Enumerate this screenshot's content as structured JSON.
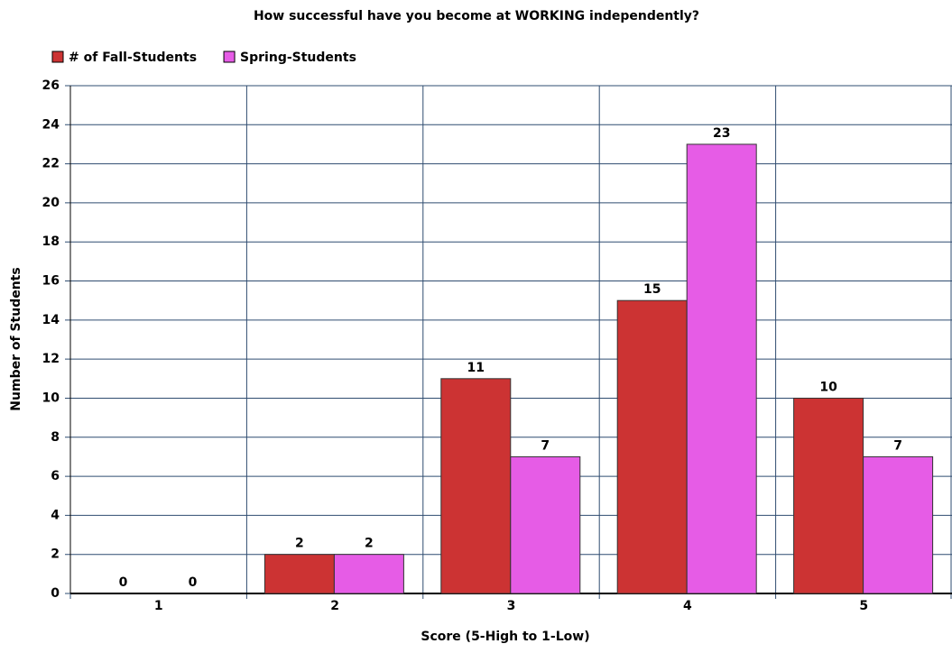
{
  "chart_data": {
    "type": "bar",
    "title": "How successful have you become at WORKING independently?",
    "x_label": "Score  (5-High to 1-Low)",
    "y_label": "Number of Students",
    "categories": [
      "1",
      "2",
      "3",
      "4",
      "5"
    ],
    "series": [
      {
        "name": "# of Fall-Students",
        "color": "#cc3333",
        "values": [
          0,
          2,
          11,
          15,
          10
        ]
      },
      {
        "name": "Spring-Students",
        "color": "#e65ce6",
        "values": [
          0,
          2,
          7,
          23,
          7
        ]
      }
    ],
    "ylim": [
      0,
      26
    ],
    "yticks": [
      0,
      2,
      4,
      6,
      8,
      10,
      12,
      14,
      16,
      18,
      20,
      22,
      24,
      26
    ],
    "grid": true,
    "legend": "top-left"
  }
}
